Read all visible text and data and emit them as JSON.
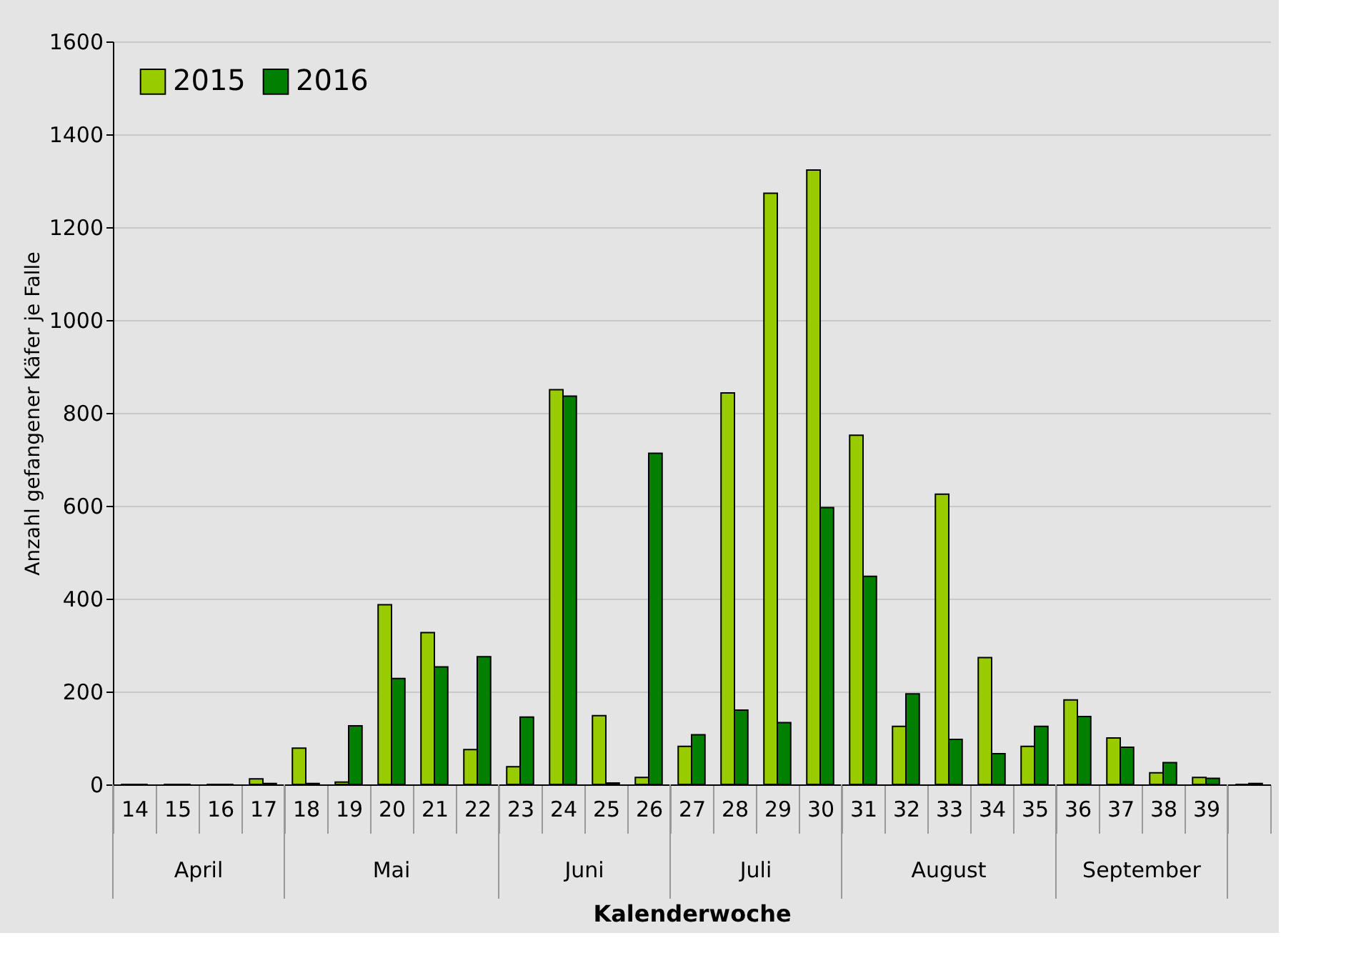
{
  "chart_data": {
    "type": "bar",
    "categories": [
      "14",
      "15",
      "16",
      "17",
      "18",
      "19",
      "20",
      "21",
      "22",
      "23",
      "24",
      "25",
      "26",
      "27",
      "28",
      "29",
      "30",
      "31",
      "32",
      "33",
      "34",
      "35",
      "36",
      "37",
      "38",
      "39",
      null
    ],
    "series": [
      {
        "name": "2015",
        "color": "#99cc00",
        "values": [
          0,
          0,
          0,
          12,
          78,
          5,
          387,
          327,
          75,
          38,
          850,
          148,
          15,
          82,
          843,
          1273,
          1323,
          752,
          125,
          625,
          273,
          82,
          182,
          100,
          25,
          15,
          0
        ]
      },
      {
        "name": "2016",
        "color": "#007f00",
        "values": [
          0,
          0,
          0,
          2,
          2,
          126,
          228,
          253,
          275,
          145,
          836,
          3,
          713,
          107,
          160,
          133,
          596,
          448,
          195,
          97,
          66,
          125,
          146,
          80,
          47,
          13,
          2
        ]
      }
    ],
    "xlabel": "Kalenderwoche",
    "ylabel": "Anzahl gefangener Käfer je Falle",
    "ylim": [
      0,
      1600
    ],
    "yticks": [
      0,
      200,
      400,
      600,
      800,
      1000,
      1200,
      1400,
      1600
    ],
    "annotations": [
      "April",
      "Mai",
      "Juni",
      "Juli",
      "August",
      "September"
    ],
    "grid": "y",
    "legend": "top left"
  }
}
